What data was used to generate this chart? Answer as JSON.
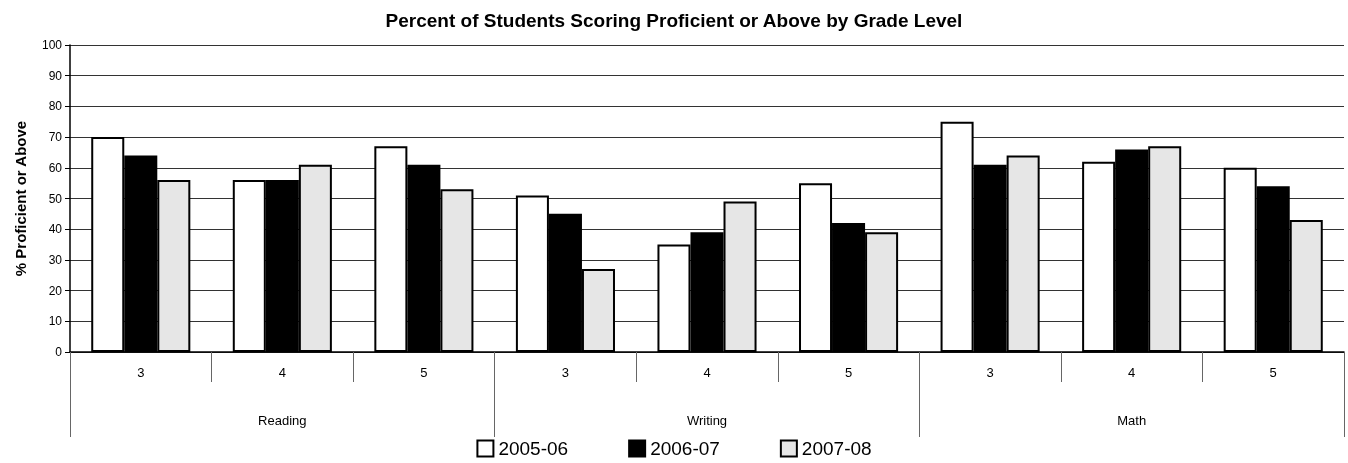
{
  "chart_data": {
    "type": "bar",
    "title": "Percent of Students Scoring Proficient or Above by Grade Level",
    "ylabel": "% Proficient or Above",
    "categories": [
      "3",
      "4",
      "5",
      "3",
      "4",
      "5",
      "3",
      "4",
      "5"
    ],
    "annotations": [
      "Reading",
      "Writing",
      "Math"
    ],
    "series": [
      {
        "name": "2005-06",
        "color": "#ffffff",
        "values": [
          70,
          56,
          67,
          51,
          35,
          55,
          75,
          62,
          60
        ]
      },
      {
        "name": "2006-07",
        "color": "#000000",
        "values": [
          64,
          56,
          61,
          45,
          39,
          42,
          61,
          66,
          54
        ]
      },
      {
        "name": "2007-08",
        "color": "#e6e6e6",
        "values": [
          56,
          61,
          53,
          27,
          49,
          39,
          64,
          67,
          43
        ]
      }
    ],
    "ylim": [
      0,
      100
    ],
    "yticks": [
      0,
      10,
      20,
      30,
      40,
      50,
      60,
      70,
      80,
      90,
      100
    ],
    "grid": "y",
    "legend": "bottom"
  }
}
